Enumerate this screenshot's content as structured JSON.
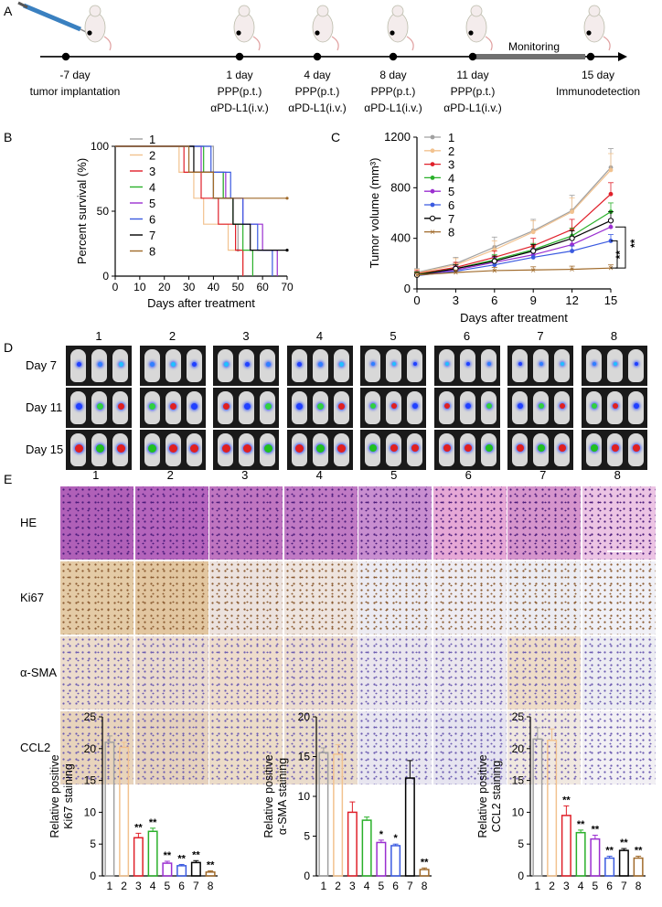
{
  "panels": {
    "A": "A",
    "B": "B",
    "C": "C",
    "D": "D",
    "E": "E"
  },
  "timeline": {
    "monitoring_label": "Monitoring",
    "events": [
      {
        "day": "-7 day",
        "line1": "tumor implantation",
        "line2": ""
      },
      {
        "day": "1 day",
        "line1": "PPP(p.t.)",
        "line2": "αPD-L1(i.v.)"
      },
      {
        "day": "4 day",
        "line1": "PPP(p.t.)",
        "line2": "αPD-L1(i.v.)"
      },
      {
        "day": "8 day",
        "line1": "PPP(p.t.)",
        "line2": "αPD-L1(i.v.)"
      },
      {
        "day": "11 day",
        "line1": "PPP(p.t.)",
        "line2": "αPD-L1(i.v.)"
      },
      {
        "day": "15 day",
        "line1": "Immunodetection",
        "line2": ""
      }
    ]
  },
  "group_labels": [
    "1",
    "2",
    "3",
    "4",
    "5",
    "6",
    "7",
    "8"
  ],
  "group_colors": [
    "#a0a0a0",
    "#f2c28f",
    "#e0202a",
    "#2ab02a",
    "#9b2fd0",
    "#3a5ae0",
    "#000000",
    "#a06a2a"
  ],
  "chart_data": [
    {
      "type": "line",
      "id": "survival",
      "title": "",
      "xlabel": "Days after treatment",
      "ylabel": "Percent survival (%)",
      "xlim": [
        0,
        70
      ],
      "ylim": [
        0,
        100
      ],
      "xticks": [
        0,
        10,
        20,
        30,
        40,
        50,
        60,
        70
      ],
      "yticks": [
        0,
        50,
        100
      ],
      "style": "step",
      "series": [
        {
          "name": "1",
          "x": [
            0,
            40,
            44,
            48,
            50
          ],
          "y": [
            100,
            80,
            60,
            40,
            20
          ]
        },
        {
          "name": "2",
          "x": [
            0,
            26,
            32,
            36,
            46,
            52
          ],
          "y": [
            100,
            80,
            60,
            40,
            20,
            0
          ]
        },
        {
          "name": "3",
          "x": [
            0,
            28,
            35,
            42,
            49,
            52
          ],
          "y": [
            100,
            80,
            60,
            40,
            20,
            0
          ]
        },
        {
          "name": "4",
          "x": [
            0,
            36,
            44,
            48,
            52,
            56
          ],
          "y": [
            100,
            80,
            60,
            40,
            20,
            0
          ]
        },
        {
          "name": "5",
          "x": [
            0,
            35,
            45,
            52,
            60,
            66
          ],
          "y": [
            100,
            80,
            60,
            40,
            20,
            0
          ]
        },
        {
          "name": "6",
          "x": [
            0,
            39,
            47,
            52,
            58,
            64
          ],
          "y": [
            100,
            80,
            60,
            40,
            20,
            0
          ]
        },
        {
          "name": "7",
          "x": [
            0,
            32,
            40,
            48,
            55,
            65,
            70
          ],
          "y": [
            100,
            80,
            60,
            40,
            20,
            20,
            20
          ]
        },
        {
          "name": "8",
          "x": [
            0,
            30,
            40,
            48,
            53,
            70
          ],
          "y": [
            100,
            80,
            60,
            60,
            60,
            60
          ]
        }
      ]
    },
    {
      "type": "line",
      "id": "tumor_volume",
      "title": "",
      "xlabel": "Days after treatment",
      "ylabel": "Tumor volume (mm³)",
      "xlim": [
        0,
        15
      ],
      "ylim": [
        0,
        1200
      ],
      "xticks": [
        0,
        3,
        6,
        9,
        12,
        15
      ],
      "yticks": [
        0,
        400,
        800,
        1200
      ],
      "significance": [
        "**",
        "**"
      ],
      "series": [
        {
          "name": "1",
          "x": [
            0,
            3,
            6,
            9,
            12,
            15
          ],
          "y": [
            130,
            200,
            330,
            460,
            620,
            960
          ],
          "err": [
            30,
            50,
            80,
            90,
            120,
            150
          ]
        },
        {
          "name": "2",
          "x": [
            0,
            3,
            6,
            9,
            12,
            15
          ],
          "y": [
            125,
            190,
            310,
            450,
            610,
            940
          ],
          "err": [
            30,
            50,
            70,
            90,
            110,
            130
          ]
        },
        {
          "name": "3",
          "x": [
            0,
            3,
            6,
            9,
            12,
            15
          ],
          "y": [
            120,
            170,
            250,
            340,
            470,
            750
          ],
          "err": [
            25,
            40,
            50,
            60,
            80,
            90
          ]
        },
        {
          "name": "4",
          "x": [
            0,
            3,
            6,
            9,
            12,
            15
          ],
          "y": [
            115,
            160,
            230,
            310,
            420,
            610
          ],
          "err": [
            20,
            30,
            40,
            50,
            60,
            70
          ]
        },
        {
          "name": "5",
          "x": [
            0,
            3,
            6,
            9,
            12,
            15
          ],
          "y": [
            110,
            150,
            210,
            270,
            350,
            490
          ],
          "err": [
            20,
            30,
            40,
            50,
            50,
            60
          ]
        },
        {
          "name": "6",
          "x": [
            0,
            3,
            6,
            9,
            12,
            15
          ],
          "y": [
            105,
            140,
            190,
            250,
            300,
            380
          ],
          "err": [
            20,
            30,
            30,
            40,
            40,
            50
          ]
        },
        {
          "name": "7",
          "x": [
            0,
            3,
            6,
            9,
            12,
            15
          ],
          "y": [
            110,
            160,
            220,
            300,
            400,
            540
          ],
          "err": [
            20,
            30,
            40,
            50,
            60,
            70
          ]
        },
        {
          "name": "8",
          "x": [
            0,
            3,
            6,
            9,
            12,
            15
          ],
          "y": [
            110,
            130,
            145,
            150,
            155,
            165
          ],
          "err": [
            15,
            20,
            25,
            25,
            25,
            25
          ]
        }
      ]
    },
    {
      "type": "bar",
      "id": "ki67",
      "ylabel": "Relative positive Ki67 staining",
      "categories": [
        "1",
        "2",
        "3",
        "4",
        "5",
        "6",
        "7",
        "8"
      ],
      "values": [
        21,
        20.2,
        6,
        7,
        2.0,
        1.6,
        2.1,
        0.6
      ],
      "err": [
        1.0,
        0.8,
        0.7,
        0.5,
        0.3,
        0.2,
        0.3,
        0.2
      ],
      "sig": [
        "",
        "",
        "**",
        "**",
        "**",
        "**",
        "**",
        "**"
      ],
      "ylim": [
        0,
        25
      ],
      "yticks": [
        0,
        5,
        10,
        15,
        20,
        25
      ]
    },
    {
      "type": "bar",
      "id": "asma",
      "ylabel": "Relative positive α-SMA staining",
      "categories": [
        "1",
        "2",
        "3",
        "4",
        "5",
        "6",
        "7",
        "8"
      ],
      "values": [
        15.5,
        15.3,
        8,
        7,
        4.2,
        3.8,
        12.3,
        0.8
      ],
      "err": [
        0.6,
        1.2,
        1.3,
        0.4,
        0.3,
        0.2,
        2.2,
        0.2
      ],
      "sig": [
        "",
        "",
        "",
        "",
        "*",
        "*",
        "",
        "**"
      ],
      "ylim": [
        0,
        20
      ],
      "yticks": [
        0,
        5,
        10,
        15,
        20
      ]
    },
    {
      "type": "bar",
      "id": "ccl2",
      "ylabel": "Relative positive CCL2 staining",
      "categories": [
        "1",
        "2",
        "3",
        "4",
        "5",
        "6",
        "7",
        "8"
      ],
      "values": [
        21.5,
        21.3,
        9.5,
        6.8,
        5.8,
        2.8,
        4.0,
        2.8
      ],
      "err": [
        1.8,
        1.8,
        1.5,
        0.4,
        0.6,
        0.3,
        0.3,
        0.3
      ],
      "sig": [
        "",
        "",
        "**",
        "**",
        "**",
        "**",
        "**",
        "**"
      ],
      "ylim": [
        0,
        25
      ],
      "yticks": [
        0,
        5,
        10,
        15,
        20,
        25
      ]
    }
  ],
  "panelD": {
    "row_labels": [
      "Day 7",
      "Day 11",
      "Day 15"
    ]
  },
  "panelE": {
    "row_labels": [
      "HE",
      "Ki67",
      "α-SMA",
      "CCL2"
    ]
  }
}
